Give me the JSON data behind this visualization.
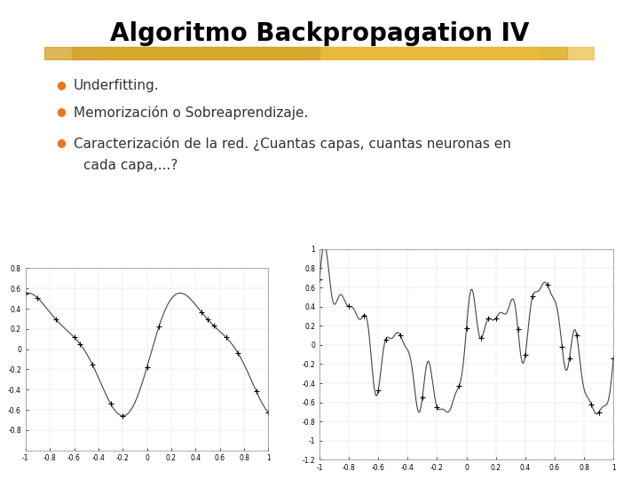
{
  "title": "Algoritmo Backpropagation IV",
  "title_color": "#000000",
  "title_fontsize": 20,
  "title_fontweight": "bold",
  "background_color": "#ffffff",
  "bar_color": "#d4a017",
  "bullet_color": "#e87820",
  "text_color": "#333333",
  "bullet_items": [
    "Underfitting.",
    "Memorización o Sobreaprendizaje.",
    "Caracterización de la red. ¿Cuantas capas, cuantas neuronas en\ncada capa,...?"
  ],
  "bullet_fontsize": 11,
  "underfit_xlim": [
    -1,
    1
  ],
  "underfit_ylim": [
    -1,
    0.8
  ],
  "overfit_xlim": [
    -1,
    1
  ],
  "overfit_ylim": [
    -1.2,
    1.0
  ]
}
